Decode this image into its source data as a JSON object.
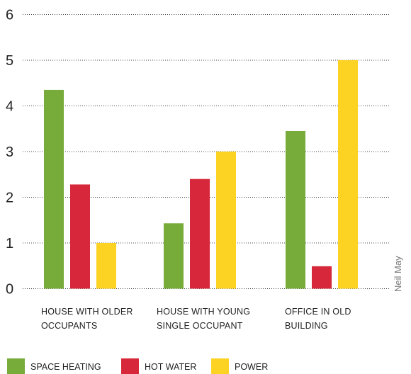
{
  "chart_data": {
    "type": "bar",
    "categories": [
      [
        "HOUSE WITH OLDER",
        "OCCUPANTS"
      ],
      [
        "HOUSE WITH YOUNG",
        "SINGLE OCCUPANT"
      ],
      [
        "OFFICE IN OLD",
        "BUILDING"
      ]
    ],
    "series": [
      {
        "name": "SPACE HEATING",
        "color": "#77ac3a",
        "values": [
          4.35,
          1.43,
          3.45
        ]
      },
      {
        "name": "HOT WATER",
        "color": "#d6283a",
        "values": [
          2.28,
          2.4,
          0.49
        ]
      },
      {
        "name": "POWER",
        "color": "#fcd323",
        "values": [
          1.0,
          3.0,
          5.0
        ]
      }
    ],
    "yticks": [
      0,
      1,
      2,
      3,
      4,
      5,
      6
    ],
    "ylim": [
      0,
      6
    ],
    "grid": true,
    "legend_position": "bottom-left",
    "credit": "Neil May",
    "title": "",
    "xlabel": "",
    "ylabel": ""
  }
}
